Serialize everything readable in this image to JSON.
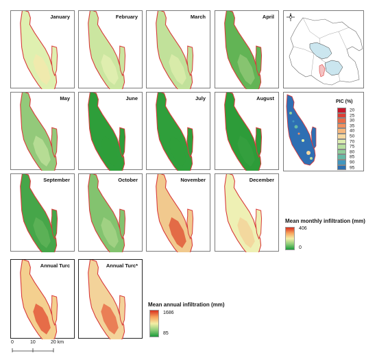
{
  "months": [
    {
      "label": "January",
      "fill": "#dff0b0",
      "hot": "#f3e9ad"
    },
    {
      "label": "February",
      "fill": "#cbe6a0",
      "hot": "#e3efb2"
    },
    {
      "label": "March",
      "fill": "#c1e19a",
      "hot": "#dcecab"
    },
    {
      "label": "April",
      "fill": "#62b455",
      "hot": "#8ec776"
    },
    {
      "label": "May",
      "fill": "#93c97a",
      "hot": "#bcdf99"
    },
    {
      "label": "June",
      "fill": "#2e9e3a",
      "hot": "#2e9e3a"
    },
    {
      "label": "July",
      "fill": "#2f9f3b",
      "hot": "#2f9f3b"
    },
    {
      "label": "August",
      "fill": "#2d9c39",
      "hot": "#36a040"
    },
    {
      "label": "September",
      "fill": "#46a649",
      "hot": "#5fb358"
    },
    {
      "label": "October",
      "fill": "#83c36f",
      "hot": "#a6d487"
    },
    {
      "label": "November",
      "fill": "#f1c98e",
      "hot": "#e05a3a"
    },
    {
      "label": "December",
      "fill": "#eef0b4",
      "hot": "#f3d49a"
    }
  ],
  "annual": [
    {
      "label": "Annual Turc",
      "fill": "#f4d08f",
      "hot": "#e35b3c"
    },
    {
      "label": "Annual Turc*",
      "fill": "#f3d39a",
      "hot": "#e8704a"
    }
  ],
  "monthly_legend": {
    "title": "Mean monthly infiltration (mm)",
    "max": "406",
    "min": "0"
  },
  "annual_legend": {
    "title": "Mean annual infiltration (mm)",
    "max": "1686",
    "min": "85"
  },
  "pic_legend": {
    "title": "PIC (%)",
    "items": [
      {
        "label": "20",
        "color": "#c8182a"
      },
      {
        "label": "25",
        "color": "#dd3f35"
      },
      {
        "label": "30",
        "color": "#ea6a48"
      },
      {
        "label": "35",
        "color": "#f2915f"
      },
      {
        "label": "40",
        "color": "#f7b77d"
      },
      {
        "label": "50",
        "color": "#f5d8a0"
      },
      {
        "label": "70",
        "color": "#dceeb0"
      },
      {
        "label": "75",
        "color": "#b7dfa0"
      },
      {
        "label": "80",
        "color": "#8fcd9a"
      },
      {
        "label": "85",
        "color": "#66b9a5"
      },
      {
        "label": "90",
        "color": "#4296be"
      },
      {
        "label": "95",
        "color": "#2d6fb0"
      }
    ]
  },
  "scale_bar": {
    "labels": [
      "0",
      "10",
      "20 km"
    ]
  },
  "colors": {
    "boundary": "#d83a3a",
    "frame": "#7a7a7a",
    "pic_base": "#2e6fb3"
  }
}
